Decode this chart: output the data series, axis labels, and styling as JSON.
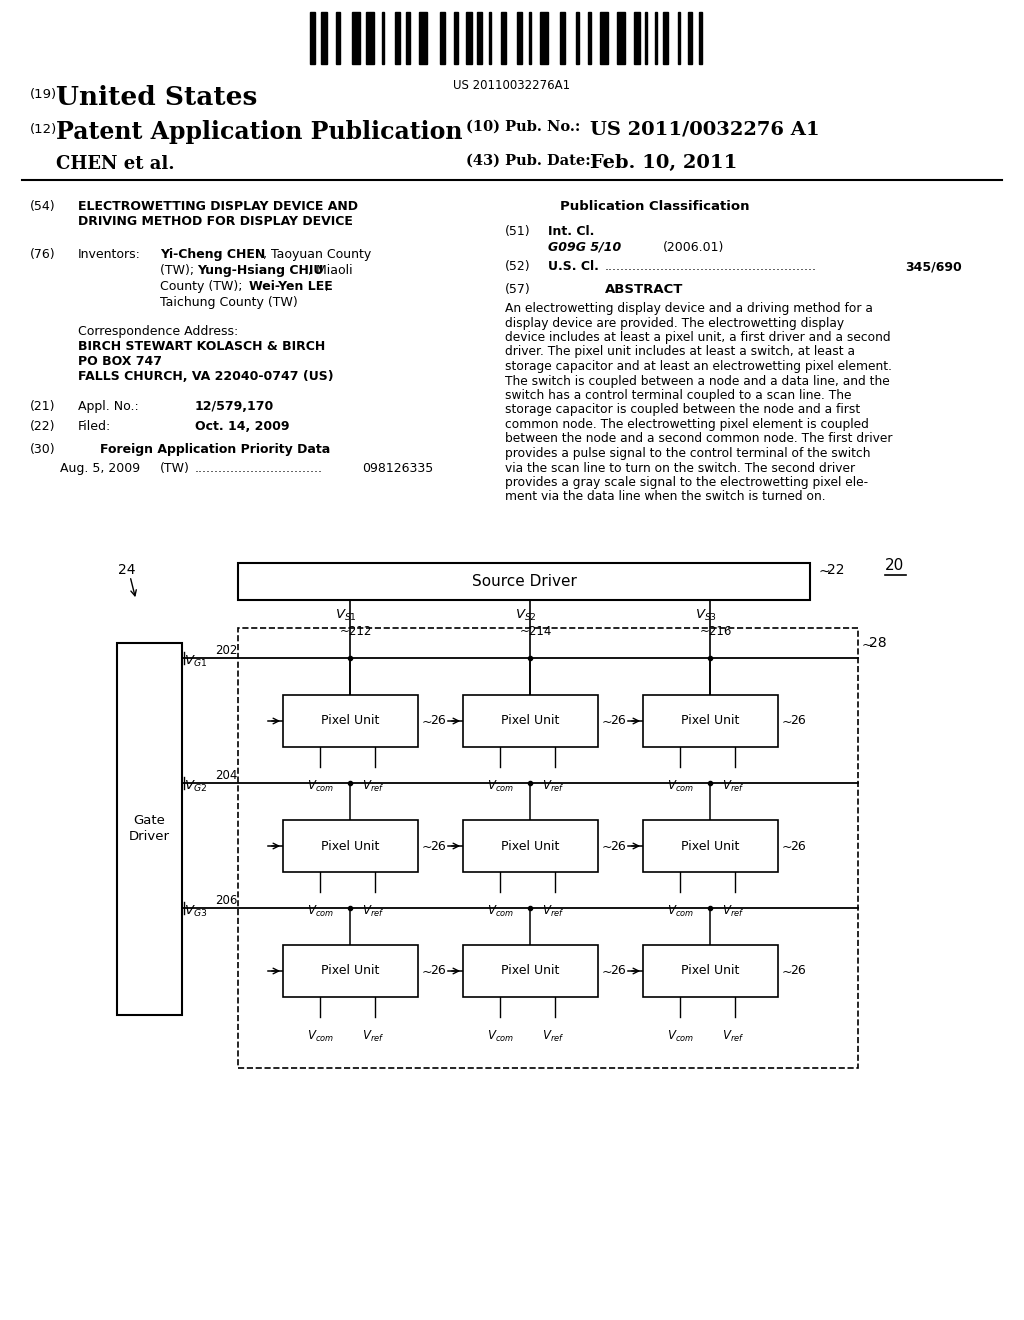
{
  "bg_color": "#ffffff",
  "barcode_text": "US 20110032276A1",
  "abstract_lines": [
    "An electrowetting display device and a driving method for a",
    "display device are provided. The electrowetting display",
    "device includes at least a pixel unit, a first driver and a second",
    "driver. The pixel unit includes at least a switch, at least a",
    "storage capacitor and at least an electrowetting pixel element.",
    "The switch is coupled between a node and a data line, and the",
    "switch has a control terminal coupled to a scan line. The",
    "storage capacitor is coupled between the node and a first",
    "common node. The electrowetting pixel element is coupled",
    "between the node and a second common node. The first driver",
    "provides a pulse signal to the control terminal of the switch",
    "via the scan line to turn on the switch. The second driver",
    "provides a gray scale signal to the electrowetting pixel ele-",
    "ment via the data line when the switch is turned on."
  ]
}
